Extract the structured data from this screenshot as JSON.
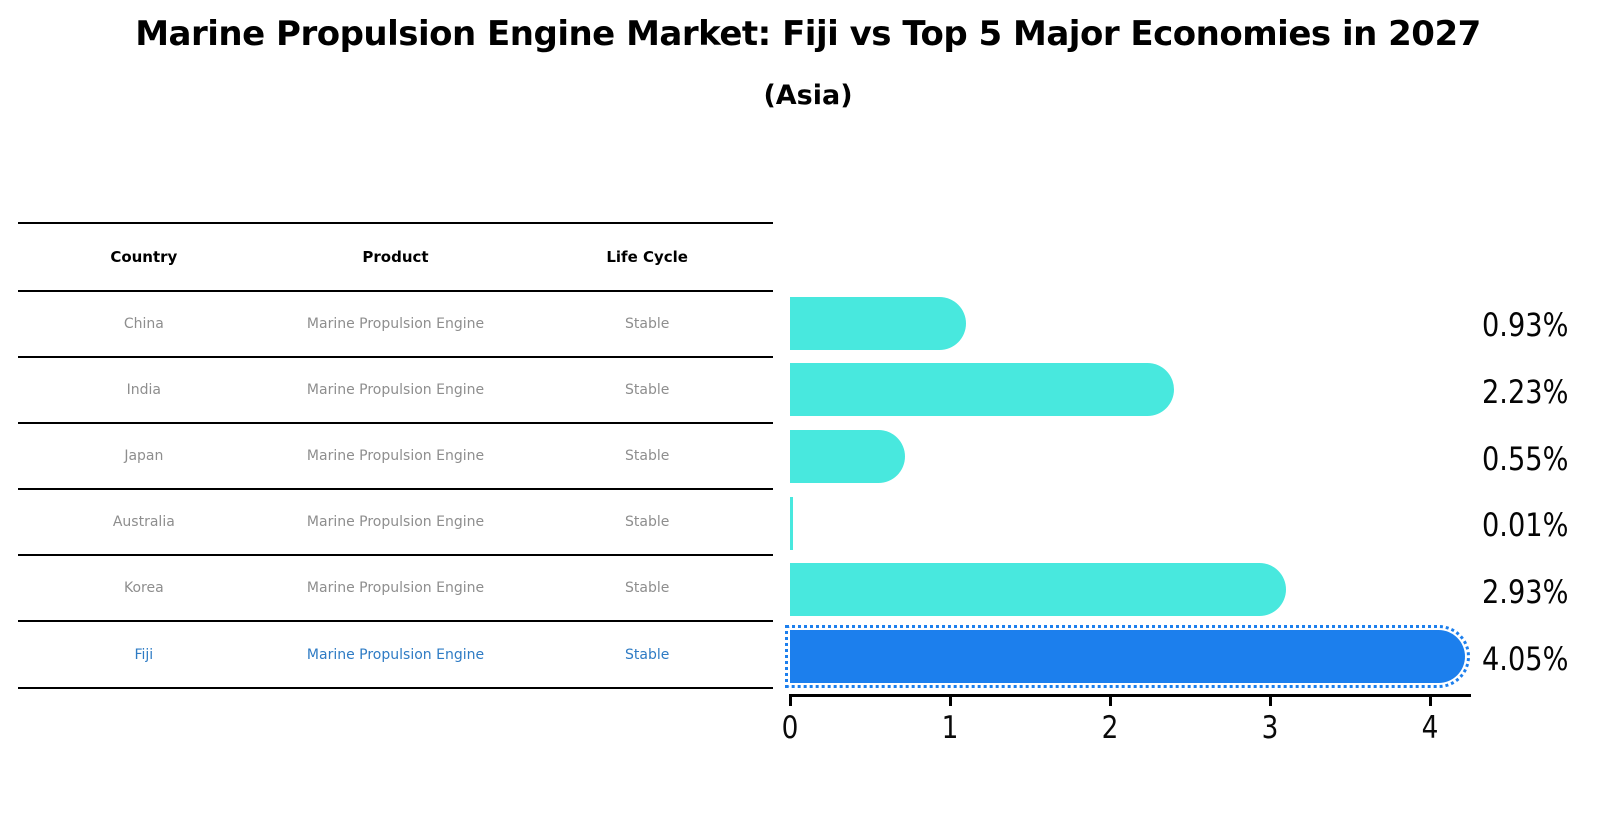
{
  "header": {
    "title": "Marine Propulsion Engine Market: Fiji vs Top 5 Major Economies in 2027",
    "subtitle": "(Asia)"
  },
  "table": {
    "columns": [
      "Country",
      "Product",
      "Life Cycle"
    ],
    "rows": [
      {
        "country": "China",
        "product": "Marine Propulsion Engine",
        "life_cycle": "Stable",
        "highlight": false
      },
      {
        "country": "India",
        "product": "Marine Propulsion Engine",
        "life_cycle": "Stable",
        "highlight": false
      },
      {
        "country": "Japan",
        "product": "Marine Propulsion Engine",
        "life_cycle": "Stable",
        "highlight": false
      },
      {
        "country": "Australia",
        "product": "Marine Propulsion Engine",
        "life_cycle": "Stable",
        "highlight": false
      },
      {
        "country": "Korea",
        "product": "Marine Propulsion Engine",
        "life_cycle": "Stable",
        "highlight": false
      },
      {
        "country": "Fiji",
        "product": "Marine Propulsion Engine",
        "life_cycle": "Stable",
        "highlight": true
      }
    ]
  },
  "chart_data": {
    "type": "bar",
    "orientation": "horizontal",
    "title": "Marine Propulsion Engine Market: Fiji vs Top 5 Major Economies in 2027",
    "subtitle": "(Asia)",
    "categories": [
      "China",
      "India",
      "Japan",
      "Australia",
      "Korea",
      "Fiji"
    ],
    "values": [
      0.93,
      2.23,
      0.55,
      0.01,
      2.93,
      4.05
    ],
    "value_labels": [
      "0.93%",
      "2.23%",
      "0.55%",
      "0.01%",
      "2.93%",
      "4.05%"
    ],
    "x_ticks": [
      0,
      1,
      2,
      3,
      4
    ],
    "xlim": [
      0,
      4.25
    ],
    "xlabel": "",
    "ylabel": "",
    "grid": false,
    "legend": "none",
    "highlight_index": 5
  },
  "colors": {
    "bar_color": "#48E8DE",
    "highlight_bar_color": "#1C7FED",
    "highlight_text_color": "#2E7BC4",
    "row_text_color": "#8e8e8e",
    "axis_color": "#000000",
    "label_text_color": "#050505"
  }
}
